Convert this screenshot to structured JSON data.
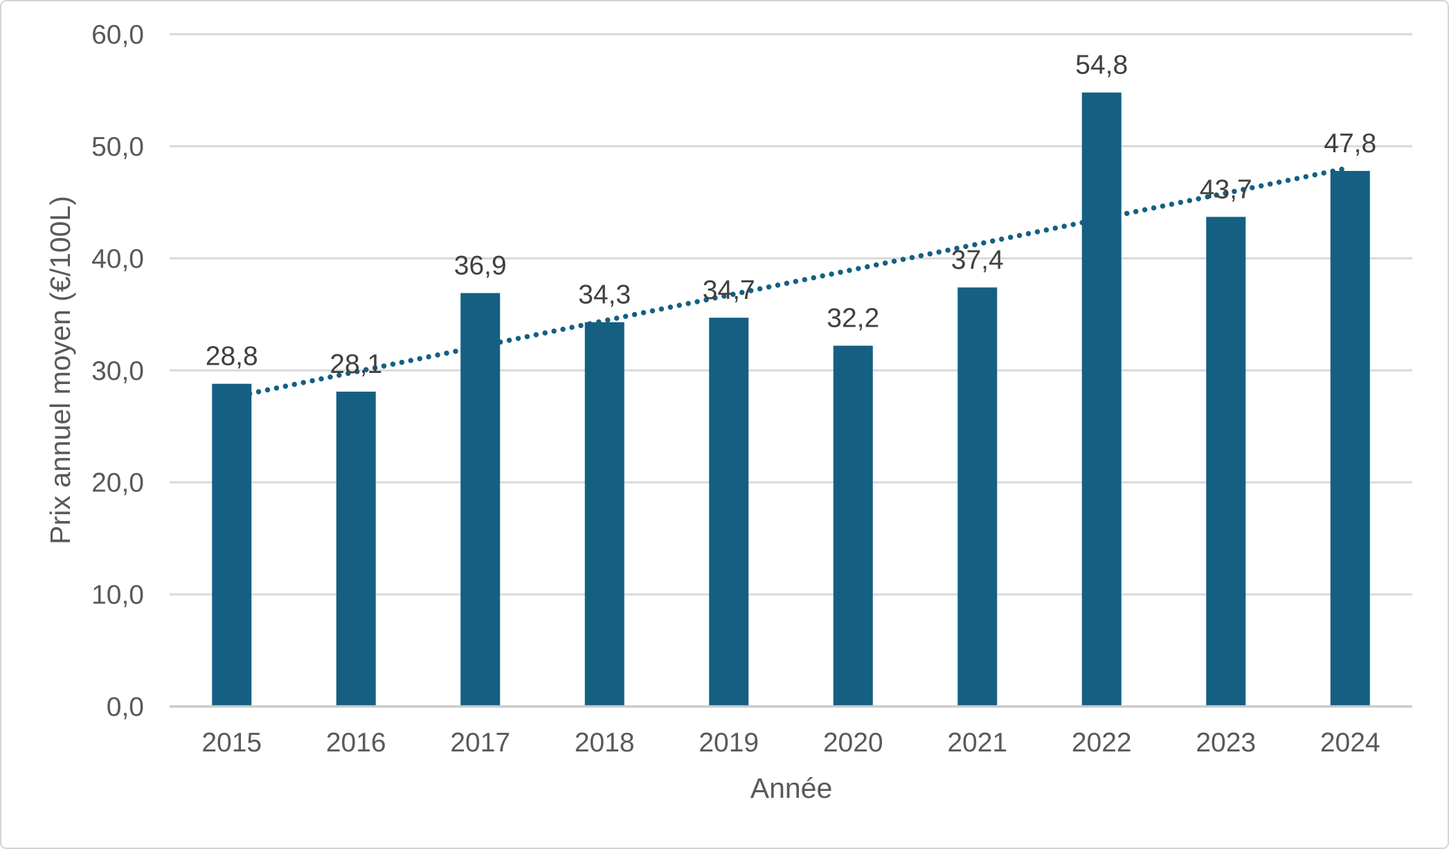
{
  "chart_data": {
    "type": "bar",
    "title": "",
    "categories": [
      "2015",
      "2016",
      "2017",
      "2018",
      "2019",
      "2020",
      "2021",
      "2022",
      "2023",
      "2024"
    ],
    "values": [
      28.8,
      28.1,
      36.9,
      34.3,
      34.7,
      32.2,
      37.4,
      54.8,
      43.7,
      47.8
    ],
    "value_labels": [
      "28,8",
      "28,1",
      "36,9",
      "34,3",
      "34,7",
      "32,2",
      "37,4",
      "54,8",
      "43,7",
      "47,8"
    ],
    "xlabel": "Année",
    "ylabel": "Prix annuel moyen (€/100L)",
    "ylim": [
      0,
      60
    ],
    "ytick_step": 10,
    "ytick_values": [
      0,
      10,
      20,
      30,
      40,
      50,
      60
    ],
    "ytick_labels": [
      "0,0",
      "10,0",
      "20,0",
      "30,0",
      "40,0",
      "50,0",
      "60,0"
    ],
    "grid": "horizontal",
    "legend": "none",
    "trendline": {
      "type": "linear",
      "style": "dotted",
      "start_value": 27.6,
      "end_value": 48.1
    },
    "colors": {
      "bar": "#156082",
      "trendline": "#156082",
      "gridline": "#d9d9d9",
      "axis_line": "#cbcbcb",
      "tick_text": "#595959",
      "axis_title_text": "#595959",
      "data_label_text": "#404040",
      "background": "#ffffff",
      "border": "#d5d5d5"
    }
  }
}
